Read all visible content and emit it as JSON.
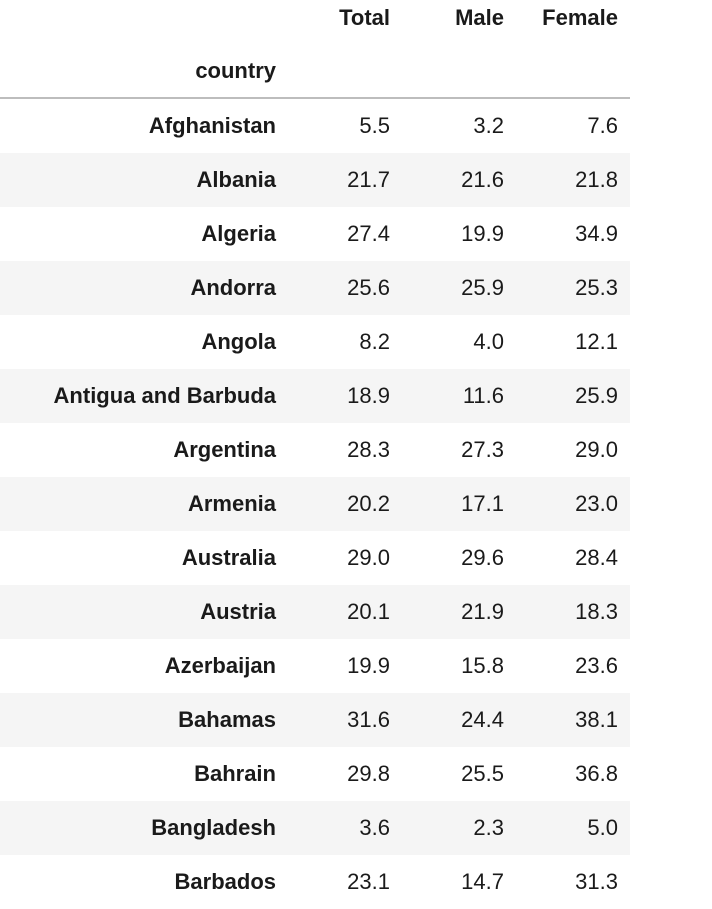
{
  "table": {
    "columns": [
      "Total",
      "Male",
      "Female"
    ],
    "index_name": "country",
    "rows": [
      {
        "country": "Afghanistan",
        "total": "5.5",
        "male": "3.2",
        "female": "7.6"
      },
      {
        "country": "Albania",
        "total": "21.7",
        "male": "21.6",
        "female": "21.8"
      },
      {
        "country": "Algeria",
        "total": "27.4",
        "male": "19.9",
        "female": "34.9"
      },
      {
        "country": "Andorra",
        "total": "25.6",
        "male": "25.9",
        "female": "25.3"
      },
      {
        "country": "Angola",
        "total": "8.2",
        "male": "4.0",
        "female": "12.1"
      },
      {
        "country": "Antigua and Barbuda",
        "total": "18.9",
        "male": "11.6",
        "female": "25.9"
      },
      {
        "country": "Argentina",
        "total": "28.3",
        "male": "27.3",
        "female": "29.0"
      },
      {
        "country": "Armenia",
        "total": "20.2",
        "male": "17.1",
        "female": "23.0"
      },
      {
        "country": "Australia",
        "total": "29.0",
        "male": "29.6",
        "female": "28.4"
      },
      {
        "country": "Austria",
        "total": "20.1",
        "male": "21.9",
        "female": "18.3"
      },
      {
        "country": "Azerbaijan",
        "total": "19.9",
        "male": "15.8",
        "female": "23.6"
      },
      {
        "country": "Bahamas",
        "total": "31.6",
        "male": "24.4",
        "female": "38.1"
      },
      {
        "country": "Bahrain",
        "total": "29.8",
        "male": "25.5",
        "female": "36.8"
      },
      {
        "country": "Bangladesh",
        "total": "3.6",
        "male": "2.3",
        "female": "5.0"
      },
      {
        "country": "Barbados",
        "total": "23.1",
        "male": "14.7",
        "female": "31.3"
      }
    ]
  }
}
